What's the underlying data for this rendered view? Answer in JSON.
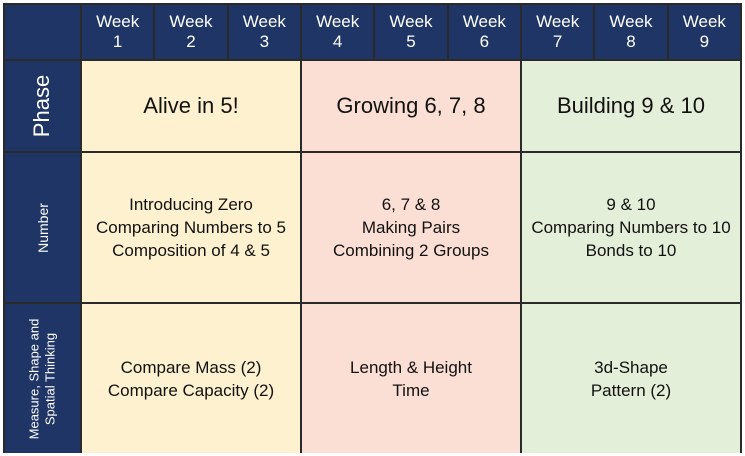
{
  "weeks": [
    {
      "top": "Week",
      "bottom": "1"
    },
    {
      "top": "Week",
      "bottom": "2"
    },
    {
      "top": "Week",
      "bottom": "3"
    },
    {
      "top": "Week",
      "bottom": "4"
    },
    {
      "top": "Week",
      "bottom": "5"
    },
    {
      "top": "Week",
      "bottom": "6"
    },
    {
      "top": "Week",
      "bottom": "7"
    },
    {
      "top": "Week",
      "bottom": "8"
    },
    {
      "top": "Week",
      "bottom": "9"
    }
  ],
  "rows": {
    "phase": {
      "label": "Phase",
      "cells": [
        "Alive in 5!",
        "Growing 6, 7, 8",
        "Building 9 & 10"
      ]
    },
    "number": {
      "label": "Number",
      "cells": [
        [
          "Introducing Zero",
          "Comparing Numbers to 5",
          "Composition of 4 & 5"
        ],
        [
          "6, 7 & 8",
          "Making Pairs",
          "Combining 2 Groups"
        ],
        [
          "9 & 10",
          "Comparing Numbers to 10",
          "Bonds to 10"
        ]
      ]
    },
    "msst": {
      "label_line1": "Measure, Shape and",
      "label_line2": "Spatial Thinking",
      "cells": [
        [
          "Compare Mass (2)",
          "Compare Capacity (2)"
        ],
        [
          "Length & Height",
          "Time"
        ],
        [
          "3d-Shape",
          "Pattern (2)"
        ]
      ]
    }
  },
  "colors": {
    "header_navy": "#1f3565",
    "block1": "#fdf1cf",
    "block2": "#fbdfd4",
    "block3": "#e3efd9"
  }
}
